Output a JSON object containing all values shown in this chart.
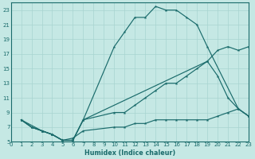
{
  "xlabel": "Humidex (Indice chaleur)",
  "bg_color": "#c5e8e4",
  "line_color": "#1a6b6b",
  "grid_color": "#a8d4d0",
  "xlim": [
    0,
    23
  ],
  "ylim": [
    5,
    24
  ],
  "xticks": [
    0,
    1,
    2,
    3,
    4,
    5,
    6,
    7,
    8,
    9,
    10,
    11,
    12,
    13,
    14,
    15,
    16,
    17,
    18,
    19,
    20,
    21,
    22,
    23
  ],
  "yticks": [
    5,
    7,
    9,
    11,
    13,
    15,
    17,
    19,
    21,
    23
  ],
  "line_top_x": [
    1,
    2,
    3,
    4,
    5,
    6,
    7,
    10,
    11,
    12,
    13,
    14,
    15,
    16,
    17,
    18,
    19,
    22,
    23
  ],
  "line_top_y": [
    8,
    7,
    6.5,
    6,
    5.2,
    5.2,
    8,
    18,
    20,
    22,
    22,
    23.5,
    23,
    23,
    22,
    21,
    18,
    9.5,
    8.5
  ],
  "line_mid_x": [
    1,
    2,
    3,
    4,
    5,
    6,
    7,
    10,
    11,
    12,
    13,
    14,
    15,
    16,
    17,
    18,
    19,
    20,
    21,
    22,
    23
  ],
  "line_mid_y": [
    8,
    7,
    6.5,
    6,
    5.2,
    5.2,
    8,
    9,
    9,
    10,
    11,
    12,
    13,
    13,
    14,
    15,
    16,
    17.5,
    18,
    17.5,
    18
  ],
  "line_bot_x": [
    1,
    2,
    3,
    4,
    5,
    6,
    7,
    10,
    11,
    12,
    13,
    14,
    15,
    16,
    17,
    18,
    19,
    20,
    21,
    22,
    23
  ],
  "line_bot_y": [
    8,
    7,
    6.5,
    6,
    5.2,
    5.5,
    6.5,
    7,
    7,
    7.5,
    7.5,
    8,
    8,
    8,
    8,
    8,
    8,
    8.5,
    9,
    9.5,
    8.5
  ],
  "line_extra_x": [
    1,
    3,
    4,
    5,
    6,
    7,
    19,
    20,
    21,
    22,
    23
  ],
  "line_extra_y": [
    8,
    6.5,
    6,
    5.2,
    5.2,
    8,
    16,
    14,
    11,
    9.5,
    8.5
  ]
}
